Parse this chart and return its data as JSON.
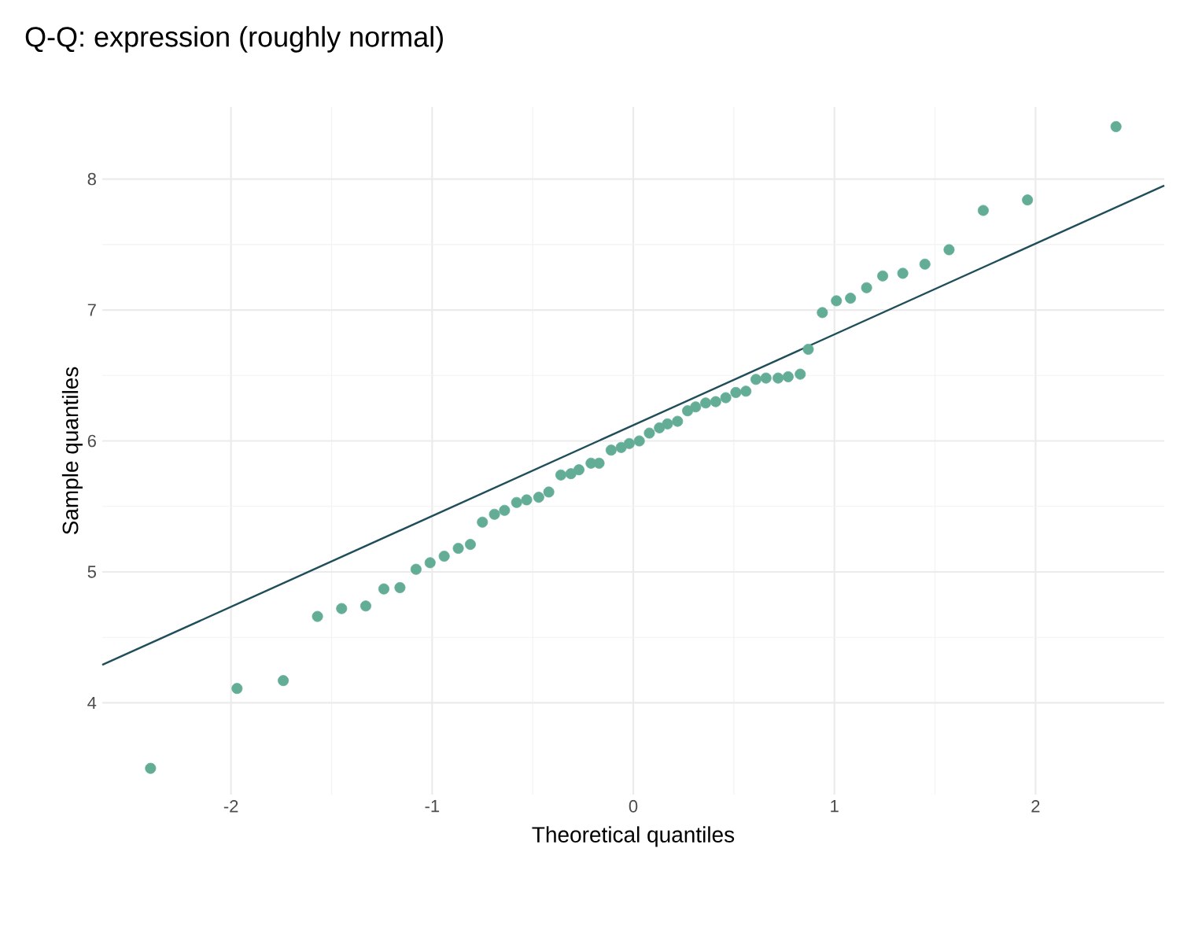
{
  "chart_data": {
    "type": "scatter",
    "title": "Q-Q: expression (roughly normal)",
    "xlabel": "Theoretical quantiles",
    "ylabel": "Sample quantiles",
    "xlim": [
      -2.64,
      2.64
    ],
    "ylim": [
      3.3,
      8.55
    ],
    "xticks": [
      -2,
      -1,
      0,
      1,
      2
    ],
    "yticks": [
      4,
      5,
      6,
      7,
      8
    ],
    "grid": true,
    "series": [
      {
        "color": "#63ad97",
        "marker": "circle",
        "x": [
          -2.4,
          -1.97,
          -1.74,
          -1.57,
          -1.45,
          -1.33,
          -1.24,
          -1.16,
          -1.08,
          -1.01,
          -0.94,
          -0.87,
          -0.81,
          -0.75,
          -0.69,
          -0.64,
          -0.58,
          -0.53,
          -0.47,
          -0.42,
          -0.36,
          -0.31,
          -0.27,
          -0.21,
          -0.17,
          -0.11,
          -0.06,
          -0.02,
          0.03,
          0.08,
          0.13,
          0.17,
          0.22,
          0.27,
          0.31,
          0.36,
          0.41,
          0.46,
          0.51,
          0.56,
          0.61,
          0.66,
          0.72,
          0.77,
          0.83,
          0.87,
          0.94,
          1.01,
          1.08,
          1.16,
          1.24,
          1.34,
          1.45,
          1.57,
          1.74,
          1.96,
          2.4
        ],
        "values": [
          3.5,
          4.11,
          4.17,
          4.66,
          4.72,
          4.74,
          4.87,
          4.88,
          5.02,
          5.07,
          5.12,
          5.18,
          5.21,
          5.38,
          5.44,
          5.47,
          5.53,
          5.55,
          5.57,
          5.61,
          5.74,
          5.75,
          5.78,
          5.83,
          5.83,
          5.93,
          5.95,
          5.98,
          6.0,
          6.06,
          6.1,
          6.13,
          6.15,
          6.23,
          6.26,
          6.29,
          6.3,
          6.33,
          6.37,
          6.38,
          6.47,
          6.48,
          6.48,
          6.49,
          6.51,
          6.7,
          6.98,
          7.07,
          7.09,
          7.17,
          7.26,
          7.28,
          7.35,
          7.46,
          7.76,
          7.84,
          8.4
        ]
      },
      {
        "type": "line",
        "color": "#1f4e5a",
        "marker": "none",
        "line_style": "solid",
        "x": [
          -2.64,
          2.64
        ],
        "values": [
          4.29,
          7.95
        ]
      }
    ]
  }
}
